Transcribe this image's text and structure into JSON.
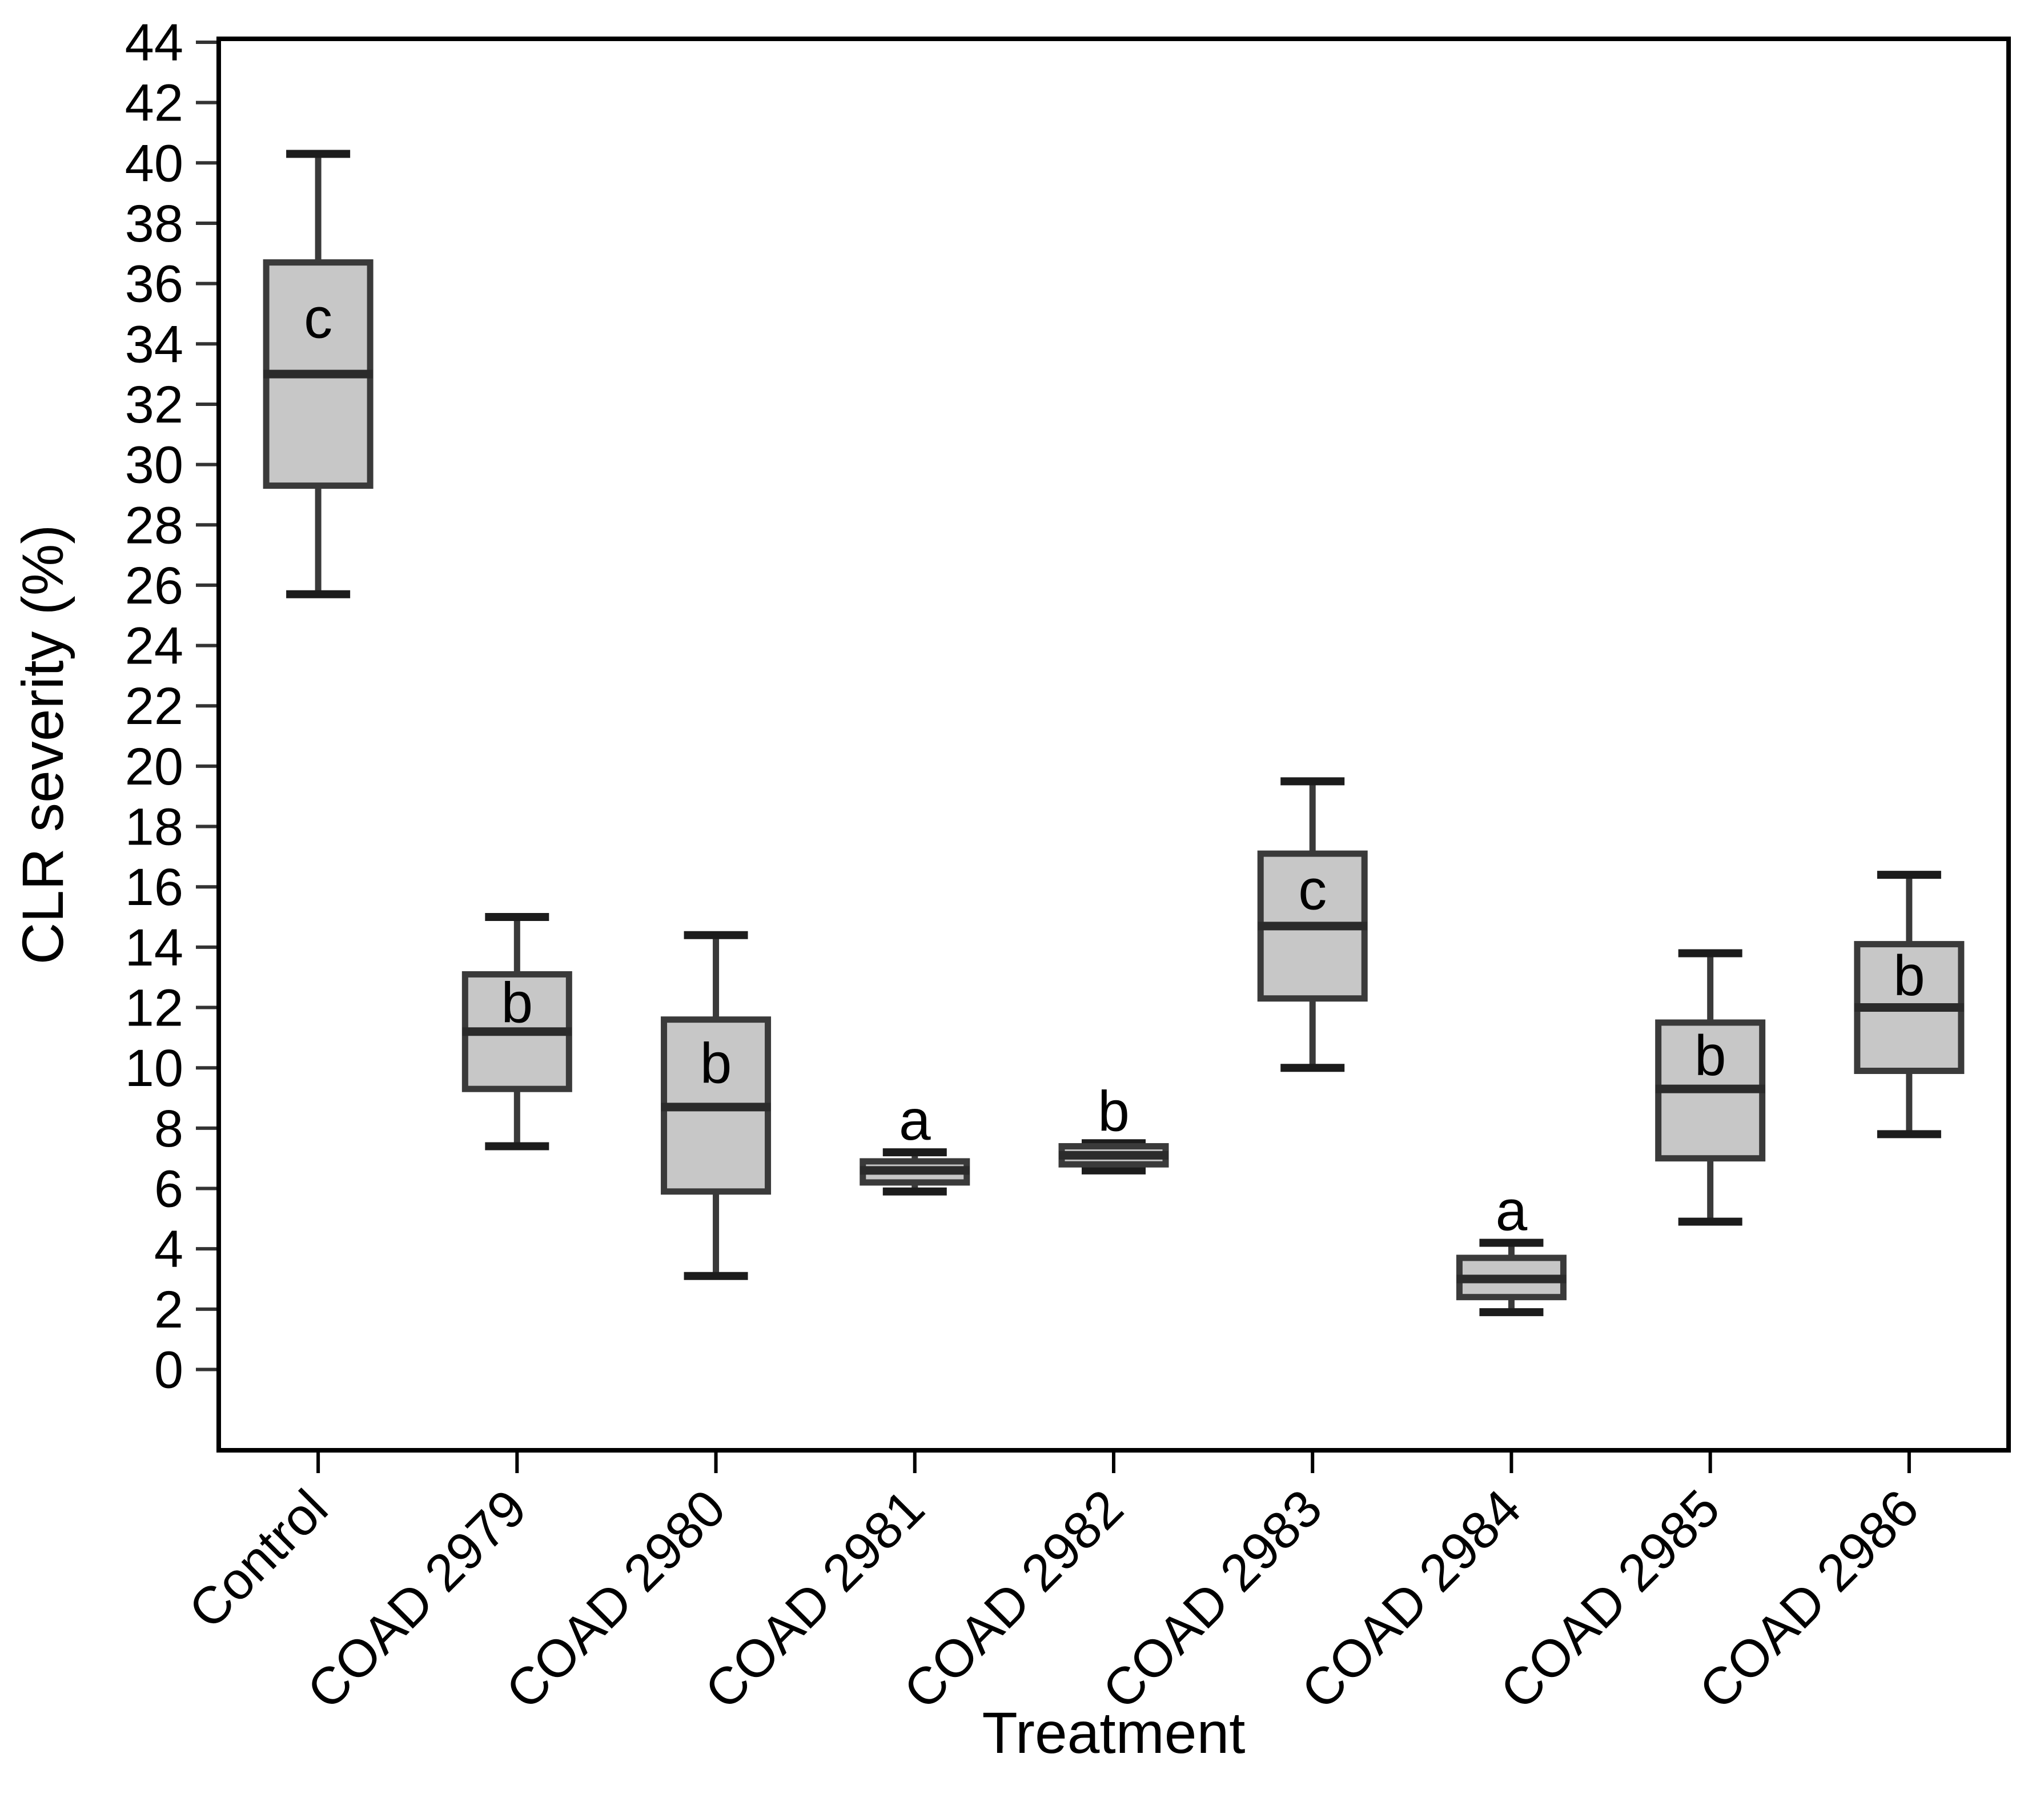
{
  "chart_data": {
    "type": "boxplot",
    "title": "",
    "xlabel": "Treatment",
    "ylabel": "CLR severity (%)",
    "ylim": [
      0,
      44
    ],
    "ytick_step": 2,
    "grid": false,
    "legend": "none",
    "categories": [
      "Control",
      "COAD 2979",
      "COAD 2980",
      "COAD 2981",
      "COAD 2982",
      "COAD 2983",
      "COAD 2984",
      "COAD 2985",
      "COAD 2986"
    ],
    "boxes": [
      {
        "category": "Control",
        "letter": "c",
        "letter_placement": "inside",
        "whisker_low": 25.7,
        "q1": 29.3,
        "median": 33.0,
        "q3": 36.7,
        "whisker_high": 40.3
      },
      {
        "category": "COAD 2979",
        "letter": "b",
        "letter_placement": "inside",
        "whisker_low": 7.4,
        "q1": 9.3,
        "median": 11.2,
        "q3": 13.1,
        "whisker_high": 15.0
      },
      {
        "category": "COAD 2980",
        "letter": "b",
        "letter_placement": "inside",
        "whisker_low": 3.1,
        "q1": 5.9,
        "median": 8.7,
        "q3": 11.6,
        "whisker_high": 14.4
      },
      {
        "category": "COAD 2981",
        "letter": "a",
        "letter_placement": "above",
        "whisker_low": 5.9,
        "q1": 6.2,
        "median": 6.6,
        "q3": 6.9,
        "whisker_high": 7.2
      },
      {
        "category": "COAD 2982",
        "letter": "b",
        "letter_placement": "above",
        "whisker_low": 6.6,
        "q1": 6.8,
        "median": 7.1,
        "q3": 7.4,
        "whisker_high": 7.5
      },
      {
        "category": "COAD 2983",
        "letter": "c",
        "letter_placement": "inside",
        "whisker_low": 10.0,
        "q1": 12.3,
        "median": 14.7,
        "q3": 17.1,
        "whisker_high": 19.5
      },
      {
        "category": "COAD 2984",
        "letter": "a",
        "letter_placement": "above",
        "whisker_low": 1.9,
        "q1": 2.4,
        "median": 3.0,
        "q3": 3.7,
        "whisker_high": 4.2
      },
      {
        "category": "COAD 2985",
        "letter": "b",
        "letter_placement": "inside",
        "whisker_low": 4.9,
        "q1": 7.0,
        "median": 9.3,
        "q3": 11.5,
        "whisker_high": 13.8
      },
      {
        "category": "COAD 2986",
        "letter": "b",
        "letter_placement": "inside",
        "whisker_low": 7.8,
        "q1": 9.9,
        "median": 12.0,
        "q3": 14.1,
        "whisker_high": 16.4
      }
    ],
    "colors": {
      "box_fill": "#c7c7c7",
      "box_border": "#3a3a3a",
      "median_line": "#2b2b2b",
      "whisker": "#3a3a3a",
      "cap": "#1c1c1c",
      "frame": "#000000",
      "tick": "#333333",
      "text": "#000000"
    }
  }
}
